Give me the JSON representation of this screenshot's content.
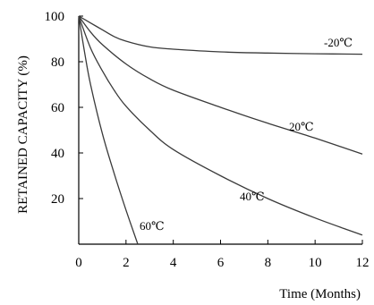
{
  "chart_data": {
    "type": "line",
    "title": "",
    "xlabel": "Time  (Months)",
    "ylabel": "RETAINED CAPACITY (%)",
    "xlim": [
      0,
      12
    ],
    "ylim": [
      0,
      100
    ],
    "x_ticks": [
      0,
      2,
      4,
      6,
      8,
      10,
      12
    ],
    "y_ticks": [
      20,
      40,
      60,
      80,
      100
    ],
    "grid": false,
    "legend": "none",
    "line_color": "#3a3a3a",
    "series": [
      {
        "name": "-20℃",
        "x": [
          0,
          0.5,
          1,
          1.5,
          2,
          3,
          4,
          6,
          8,
          10,
          12
        ],
        "y": [
          100,
          97,
          94,
          91,
          89,
          86.5,
          85.5,
          84.3,
          83.8,
          83.5,
          83.3
        ]
      },
      {
        "name": "20℃",
        "x": [
          0,
          0.5,
          1,
          2,
          3,
          4,
          6,
          8,
          10,
          12
        ],
        "y": [
          100,
          93,
          87.5,
          79,
          72.5,
          67.5,
          60,
          53,
          46.5,
          39.5
        ]
      },
      {
        "name": "40℃",
        "x": [
          0,
          0.5,
          1,
          1.5,
          2,
          3,
          4,
          6,
          8,
          10,
          12
        ],
        "y": [
          100,
          86,
          76,
          67.5,
          60.5,
          50,
          41.5,
          30,
          20,
          11.5,
          4
        ]
      },
      {
        "name": "60℃",
        "x": [
          0,
          0.25,
          0.5,
          1,
          1.5,
          2,
          2.5
        ],
        "y": [
          100,
          84,
          70,
          48.5,
          31,
          15,
          0
        ]
      }
    ]
  }
}
